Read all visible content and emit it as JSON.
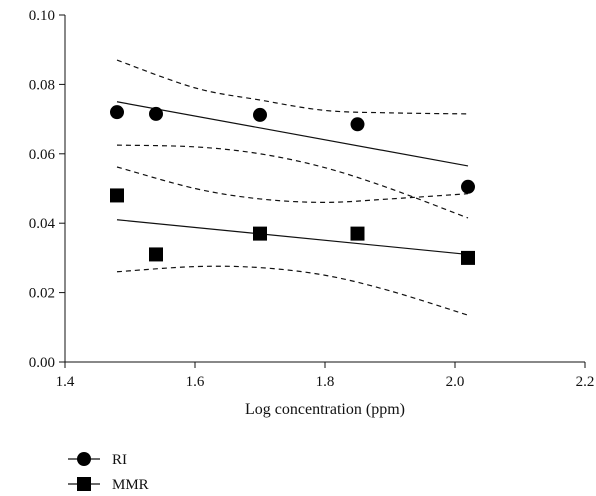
{
  "chart_data": {
    "type": "scatter",
    "title": "",
    "xlabel": "Log concentration (ppm)",
    "ylabel": "",
    "xlim": [
      1.4,
      2.2
    ],
    "ylim": [
      0.0,
      0.1
    ],
    "xticks": [
      "1.4",
      "1.6",
      "1.8",
      "2.0",
      "2.2"
    ],
    "yticks": [
      "0.00",
      "0.02",
      "0.04",
      "0.06",
      "0.08",
      "0.10"
    ],
    "grid": false,
    "legend_position": "bottom-left",
    "series": [
      {
        "name": "RI",
        "marker": "circle",
        "x": [
          1.48,
          1.54,
          1.7,
          1.85,
          2.02
        ],
        "y": [
          0.072,
          0.0715,
          0.0712,
          0.0685,
          0.0505
        ],
        "fit_line": {
          "x": [
            1.48,
            2.02
          ],
          "y": [
            0.075,
            0.0565
          ]
        },
        "confidence_band": {
          "x": [
            1.48,
            1.6,
            1.7,
            1.8,
            1.9,
            2.02
          ],
          "upper": [
            0.087,
            0.079,
            0.0755,
            0.0725,
            0.0718,
            0.0715
          ],
          "lower": [
            0.0625,
            0.062,
            0.06,
            0.056,
            0.05,
            0.0415
          ]
        }
      },
      {
        "name": "MMR",
        "marker": "square",
        "x": [
          1.48,
          1.54,
          1.7,
          1.85,
          2.02
        ],
        "y": [
          0.048,
          0.031,
          0.037,
          0.037,
          0.03
        ],
        "fit_line": {
          "x": [
            1.48,
            2.02
          ],
          "y": [
            0.041,
            0.031
          ]
        },
        "confidence_band": {
          "x": [
            1.48,
            1.6,
            1.7,
            1.8,
            1.9,
            2.02
          ],
          "upper": [
            0.0562,
            0.05,
            0.047,
            0.046,
            0.047,
            0.0485
          ],
          "lower": [
            0.026,
            0.0275,
            0.0272,
            0.025,
            0.0205,
            0.0135
          ]
        }
      }
    ]
  }
}
